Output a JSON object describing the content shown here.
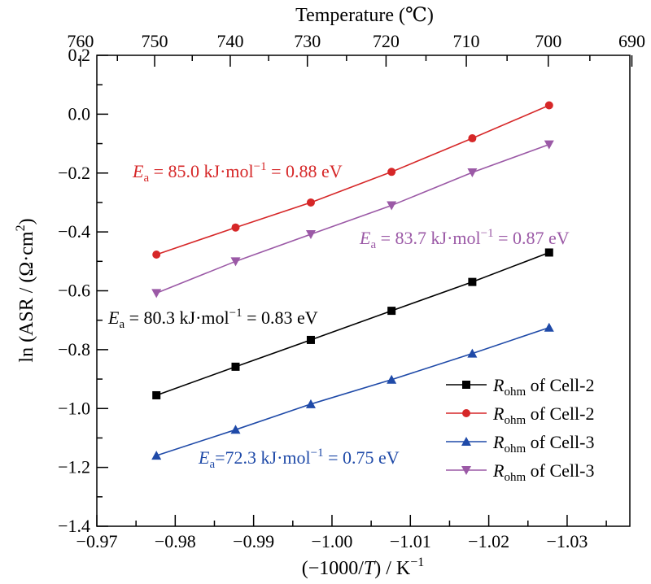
{
  "chart_data": {
    "type": "line",
    "title": "",
    "xlabel_prefix": "(−1000/",
    "xlabel_var": "T",
    "xlabel_suffix": ") / K",
    "xlabel_sup": "−1",
    "ylabel": "ln (ASR / (Ω·cm",
    "ylabel_sup": "2",
    "ylabel_end": ")",
    "top_xlabel": "Temperature (℃)",
    "xlim": [
      -0.97,
      -1.038
    ],
    "ylim": [
      -1.4,
      0.2
    ],
    "x_ticks": [
      -0.97,
      -0.98,
      -0.99,
      -1.0,
      -1.01,
      -1.02,
      -1.03
    ],
    "x_tick_labels": [
      "−0.97",
      "−0.98",
      "−0.99",
      "−1.00",
      "−1.01",
      "−1.02",
      "−1.03"
    ],
    "y_ticks": [
      -1.4,
      -1.2,
      -1.0,
      -0.8,
      -0.6,
      -0.4,
      -0.2,
      0.0,
      0.2
    ],
    "y_tick_labels": [
      "−1.4",
      "−1.2",
      "−1.0",
      "−0.8",
      "−0.6",
      "−0.4",
      "−0.2",
      "0.0",
      "0.2"
    ],
    "top_ticks": [
      760,
      750,
      740,
      730,
      720,
      710,
      700,
      690
    ],
    "top_tick_labels": [
      "760",
      "750",
      "740",
      "730",
      "720",
      "710",
      "700",
      "690"
    ],
    "x": [
      -0.9776,
      -0.9877,
      -0.9973,
      -1.0076,
      -1.0179,
      -1.0277
    ],
    "series": [
      {
        "name_main": "R",
        "name_sub": "ohm",
        "name_rest": " of Cell-2",
        "color": "#000000",
        "marker": "square",
        "values": [
          -0.955,
          -0.858,
          -0.767,
          -0.668,
          -0.57,
          -0.47
        ]
      },
      {
        "name_main": "R",
        "name_sub": "ohm",
        "name_rest": " of Cell-2",
        "color": "#d62728",
        "marker": "circle",
        "values": [
          -0.477,
          -0.385,
          -0.3,
          -0.196,
          -0.082,
          0.03
        ]
      },
      {
        "name_main": "R",
        "name_sub": "ohm",
        "name_rest": " of Cell-3",
        "color": "#1f4aa8",
        "marker": "triangle-up",
        "values": [
          -1.16,
          -1.072,
          -0.985,
          -0.902,
          -0.813,
          -0.725
        ]
      },
      {
        "name_main": "R",
        "name_sub": "ohm",
        "name_rest": " of Cell-3",
        "color": "#9b59a6",
        "marker": "triangle-down",
        "values": [
          -0.608,
          -0.5,
          -0.408,
          -0.31,
          -0.198,
          -0.103
        ]
      }
    ],
    "annotations": [
      {
        "color": "#d62728",
        "main": "E",
        "sub": "a",
        "text1": " = 85.0 kJ·mol",
        "sup": "−1",
        "text2": " = 0.88 eV"
      },
      {
        "color": "#9b59a6",
        "main": "E",
        "sub": "a",
        "text1": " = 83.7 kJ·mol",
        "sup": "−1",
        "text2": " = 0.87 eV"
      },
      {
        "color": "#000000",
        "main": "E",
        "sub": "a",
        "text1": " = 80.3 kJ·mol",
        "sup": "−1",
        "text2": " = 0.83 eV"
      },
      {
        "color": "#1f4aa8",
        "main": "E",
        "sub": "a",
        "text1": "=72.3 kJ·mol",
        "sup": "−1",
        "text2": " = 0.75 eV"
      }
    ],
    "legend_position": "bottom-right",
    "grid": false
  }
}
